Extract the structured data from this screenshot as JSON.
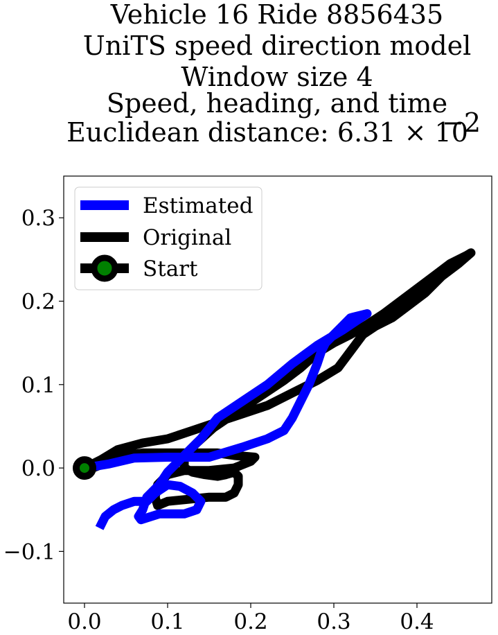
{
  "chart_data": {
    "type": "line",
    "title_lines": [
      "Vehicle 16 Ride 8856435",
      "UniTS speed direction model",
      "Window size 4",
      "Speed, heading, and time",
      "Euclidean distance: 6.31 × 10"
    ],
    "title_exponent": "−2",
    "xlabel": "",
    "ylabel": "",
    "xlim": [
      -0.025,
      0.49
    ],
    "ylim": [
      -0.162,
      0.35
    ],
    "x_ticks": [
      {
        "value": 0.0,
        "label": "0.0"
      },
      {
        "value": 0.1,
        "label": "0.1"
      },
      {
        "value": 0.2,
        "label": "0.2"
      },
      {
        "value": 0.3,
        "label": "0.3"
      },
      {
        "value": 0.4,
        "label": "0.4"
      }
    ],
    "y_ticks": [
      {
        "value": -0.1,
        "label": "−0.1"
      },
      {
        "value": 0.0,
        "label": "0.0"
      },
      {
        "value": 0.1,
        "label": "0.1"
      },
      {
        "value": 0.2,
        "label": "0.2"
      },
      {
        "value": 0.3,
        "label": "0.3"
      }
    ],
    "grid": false,
    "legend_position": "top-left",
    "series": [
      {
        "name": "Estimated",
        "color": "#0000ff",
        "points": [
          [
            0.0,
            0.0
          ],
          [
            0.03,
            0.005
          ],
          [
            0.06,
            0.012
          ],
          [
            0.1,
            0.013
          ],
          [
            0.125,
            0.013
          ],
          [
            0.15,
            0.013
          ],
          [
            0.19,
            0.025
          ],
          [
            0.22,
            0.035
          ],
          [
            0.24,
            0.045
          ],
          [
            0.25,
            0.06
          ],
          [
            0.26,
            0.08
          ],
          [
            0.27,
            0.1
          ],
          [
            0.28,
            0.125
          ],
          [
            0.285,
            0.14
          ],
          [
            0.29,
            0.15
          ],
          [
            0.3,
            0.16
          ],
          [
            0.31,
            0.17
          ],
          [
            0.32,
            0.18
          ],
          [
            0.34,
            0.185
          ],
          [
            0.34,
            0.185
          ],
          [
            0.31,
            0.165
          ],
          [
            0.28,
            0.147
          ],
          [
            0.25,
            0.125
          ],
          [
            0.22,
            0.1
          ],
          [
            0.19,
            0.08
          ],
          [
            0.16,
            0.06
          ],
          [
            0.14,
            0.035
          ],
          [
            0.12,
            0.015
          ],
          [
            0.1,
            -0.005
          ],
          [
            0.09,
            -0.02
          ],
          [
            0.075,
            -0.035
          ],
          [
            0.07,
            -0.05
          ],
          [
            0.065,
            -0.058
          ],
          [
            0.068,
            -0.062
          ],
          [
            0.09,
            -0.055
          ],
          [
            0.12,
            -0.055
          ],
          [
            0.135,
            -0.05
          ],
          [
            0.14,
            -0.04
          ],
          [
            0.13,
            -0.03
          ],
          [
            0.115,
            -0.022
          ],
          [
            0.1,
            -0.02
          ],
          [
            0.085,
            -0.03
          ],
          [
            0.075,
            -0.04
          ],
          [
            0.06,
            -0.04
          ],
          [
            0.045,
            -0.045
          ],
          [
            0.035,
            -0.05
          ],
          [
            0.025,
            -0.058
          ],
          [
            0.018,
            -0.072
          ]
        ]
      },
      {
        "name": "Original",
        "color": "#000000",
        "points": [
          [
            0.0,
            0.0
          ],
          [
            0.02,
            0.01
          ],
          [
            0.04,
            0.022
          ],
          [
            0.07,
            0.03
          ],
          [
            0.1,
            0.035
          ],
          [
            0.13,
            0.045
          ],
          [
            0.16,
            0.055
          ],
          [
            0.19,
            0.065
          ],
          [
            0.22,
            0.075
          ],
          [
            0.25,
            0.09
          ],
          [
            0.28,
            0.105
          ],
          [
            0.305,
            0.12
          ],
          [
            0.32,
            0.14
          ],
          [
            0.335,
            0.16
          ],
          [
            0.35,
            0.17
          ],
          [
            0.37,
            0.18
          ],
          [
            0.39,
            0.195
          ],
          [
            0.41,
            0.21
          ],
          [
            0.43,
            0.23
          ],
          [
            0.45,
            0.245
          ],
          [
            0.465,
            0.258
          ],
          [
            0.46,
            0.255
          ],
          [
            0.44,
            0.245
          ],
          [
            0.42,
            0.23
          ],
          [
            0.4,
            0.215
          ],
          [
            0.38,
            0.2
          ],
          [
            0.36,
            0.185
          ],
          [
            0.34,
            0.172
          ],
          [
            0.32,
            0.16
          ],
          [
            0.3,
            0.15
          ],
          [
            0.28,
            0.138
          ],
          [
            0.26,
            0.12
          ],
          [
            0.24,
            0.105
          ],
          [
            0.21,
            0.085
          ],
          [
            0.18,
            0.065
          ],
          [
            0.155,
            0.048
          ],
          [
            0.135,
            0.03
          ],
          [
            0.12,
            0.015
          ],
          [
            0.12,
            0.0
          ],
          [
            0.13,
            -0.005
          ],
          [
            0.145,
            -0.008
          ],
          [
            0.16,
            -0.01
          ],
          [
            0.17,
            -0.008
          ],
          [
            0.18,
            -0.005
          ],
          [
            0.185,
            -0.01
          ],
          [
            0.185,
            -0.02
          ],
          [
            0.18,
            -0.03
          ],
          [
            0.17,
            -0.035
          ],
          [
            0.15,
            -0.035
          ],
          [
            0.12,
            -0.038
          ],
          [
            0.1,
            -0.04
          ],
          [
            0.088,
            -0.045
          ],
          [
            0.085,
            -0.035
          ],
          [
            0.088,
            -0.02
          ],
          [
            0.1,
            -0.008
          ],
          [
            0.12,
            -0.003
          ],
          [
            0.15,
            -0.003
          ],
          [
            0.18,
            0.0
          ],
          [
            0.2,
            0.008
          ],
          [
            0.205,
            0.013
          ],
          [
            0.18,
            0.015
          ],
          [
            0.16,
            0.018
          ],
          [
            0.13,
            0.018
          ],
          [
            0.1,
            0.018
          ],
          [
            0.07,
            0.018
          ],
          [
            0.05,
            0.015
          ],
          [
            0.03,
            0.008
          ],
          [
            0.01,
            0.0
          ]
        ]
      },
      {
        "name": "Start",
        "color": "#000000",
        "marker_color": "#008000",
        "points": [
          [
            0.0,
            0.0
          ]
        ]
      }
    ]
  }
}
